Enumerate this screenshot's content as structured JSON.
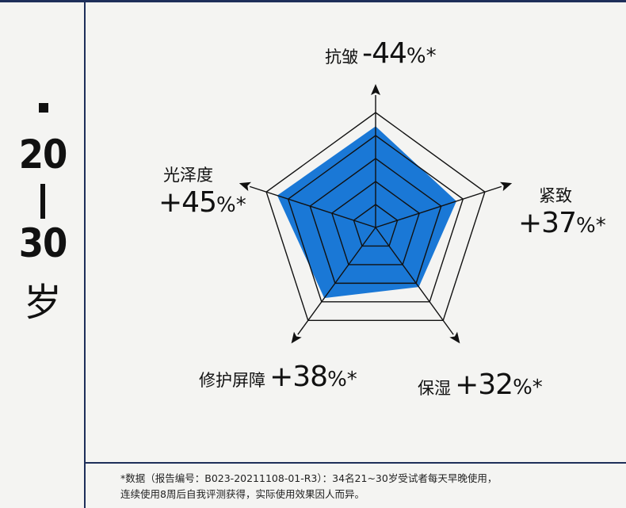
{
  "sidebar": {
    "age_from": "20",
    "age_to": "30",
    "age_unit": "岁"
  },
  "chart_data": {
    "type": "radar",
    "axes": [
      "抗皱",
      "紧致",
      "保湿",
      "修护屏障",
      "光泽度"
    ],
    "values": [
      44,
      37,
      32,
      38,
      45
    ],
    "value_labels": [
      "-44%*",
      "+37%*",
      "+32%*",
      "+38%*",
      "+45%*"
    ],
    "rings": 5,
    "fill_color": "#1a78d6",
    "grid_color": "#111111"
  },
  "labels": [
    {
      "name": "抗皱",
      "value": "-44",
      "unit": "%*"
    },
    {
      "name": "紧致",
      "value": "+37",
      "unit": "%*"
    },
    {
      "name": "保湿",
      "value": "+32",
      "unit": "%*"
    },
    {
      "name": "修护屏障",
      "value": "+38",
      "unit": "%*"
    },
    {
      "name": "光泽度",
      "value": "+45",
      "unit": "%*"
    }
  ],
  "footnote": {
    "line1": "*数据（报告编号：B023-20211108-01-R3）：34名21~30岁受试者每天早晚使用，",
    "line2": "连续使用8周后自我评测获得，实际使用效果因人而异。"
  }
}
